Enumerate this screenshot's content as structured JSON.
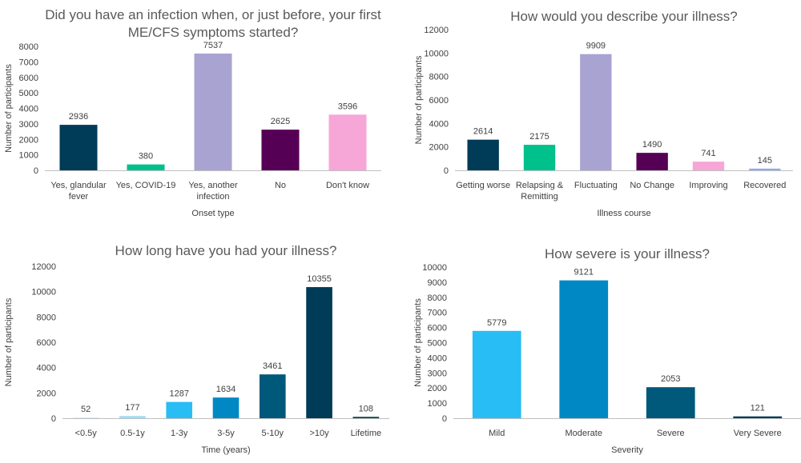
{
  "colors": {
    "axis": "#bfbfbf",
    "text": "#404040",
    "title": "#595959"
  },
  "chart_data": [
    {
      "type": "bar",
      "title": "Did you have an infection when, or just before, your first ME/CFS symptoms started?",
      "title_lines": [
        "Did you have an infection when, or just before, your first",
        "ME/CFS symptoms started?"
      ],
      "xlabel": "Onset type",
      "ylabel": "Number of participants",
      "ylim": [
        0,
        8000
      ],
      "yticks": [
        0,
        1000,
        2000,
        3000,
        4000,
        5000,
        6000,
        7000,
        8000
      ],
      "grid": false,
      "categories": [
        "Yes, glandular fever",
        "Yes, COVID-19",
        "Yes, another infection",
        "No",
        "Don't know"
      ],
      "category_lines": [
        [
          "Yes, glandular",
          "fever"
        ],
        [
          "Yes, COVID-19"
        ],
        [
          "Yes, another",
          "infection"
        ],
        [
          "No"
        ],
        [
          "Don't know"
        ]
      ],
      "values": [
        2936,
        380,
        7537,
        2625,
        3596
      ],
      "colors": [
        "#003b57",
        "#00c08b",
        "#a9a3d2",
        "#560055",
        "#f7a6d8"
      ]
    },
    {
      "type": "bar",
      "title": "How would you describe your illness?",
      "title_lines": [
        "How would you describe your illness?"
      ],
      "xlabel": "Illness course",
      "ylabel": "Number of participants",
      "ylim": [
        0,
        12000
      ],
      "yticks": [
        0,
        2000,
        4000,
        6000,
        8000,
        10000,
        12000
      ],
      "grid": false,
      "categories": [
        "Getting worse",
        "Relapsing & Remitting",
        "Fluctuating",
        "No Change",
        "Improving",
        "Recovered"
      ],
      "category_lines": [
        [
          "Getting worse"
        ],
        [
          "Relapsing &",
          "Remitting"
        ],
        [
          "Fluctuating"
        ],
        [
          "No Change"
        ],
        [
          "Improving"
        ],
        [
          "Recovered"
        ]
      ],
      "values": [
        2614,
        2175,
        9909,
        1490,
        741,
        145
      ],
      "colors": [
        "#003b57",
        "#00c08b",
        "#a9a3d2",
        "#560055",
        "#f7a6d8",
        "#8fa8f7"
      ]
    },
    {
      "type": "bar",
      "title": "How long have you had your illness?",
      "title_lines": [
        "How long have you had your illness?"
      ],
      "xlabel": "Time (years)",
      "ylabel": "Number of participants",
      "ylim": [
        0,
        12000
      ],
      "yticks": [
        0,
        2000,
        4000,
        6000,
        8000,
        10000,
        12000
      ],
      "grid": false,
      "categories": [
        "<0.5y",
        "0.5-1y",
        "1-3y",
        "3-5y",
        "5-10y",
        ">10y",
        "Lifetime"
      ],
      "category_lines": [
        [
          "<0.5y"
        ],
        [
          "0.5-1y"
        ],
        [
          "1-3y"
        ],
        [
          "3-5y"
        ],
        [
          "5-10y"
        ],
        [
          ">10y"
        ],
        [
          "Lifetime"
        ]
      ],
      "values": [
        52,
        177,
        1287,
        1634,
        3461,
        10355,
        108
      ],
      "colors": [
        "#c9ecfb",
        "#9fdcf7",
        "#29bdf5",
        "#0088c4",
        "#00587a",
        "#003b57",
        "#004444"
      ]
    },
    {
      "type": "bar",
      "title": "How severe is your illness?",
      "title_lines": [
        "How severe is your illness?"
      ],
      "xlabel": "Severity",
      "ylabel": "Number of participants",
      "ylim": [
        0,
        10000
      ],
      "yticks": [
        0,
        1000,
        2000,
        3000,
        4000,
        5000,
        6000,
        7000,
        8000,
        9000,
        10000
      ],
      "grid": false,
      "categories": [
        "Mild",
        "Moderate",
        "Severe",
        "Very Severe"
      ],
      "category_lines": [
        [
          "Mild"
        ],
        [
          "Moderate"
        ],
        [
          "Severe"
        ],
        [
          "Very Severe"
        ]
      ],
      "values": [
        5779,
        9121,
        2053,
        121
      ],
      "colors": [
        "#29bdf5",
        "#0088c4",
        "#00587a",
        "#003b57"
      ]
    }
  ]
}
